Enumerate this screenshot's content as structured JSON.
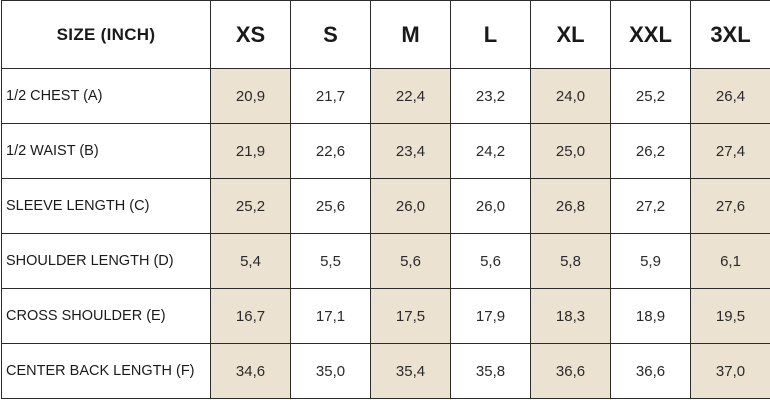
{
  "header_label": "SIZE (INCH)",
  "sizes": [
    "XS",
    "S",
    "M",
    "L",
    "XL",
    "XXL",
    "3XL"
  ],
  "shading_color": "#ece2d1",
  "shaded_columns": [
    0,
    2,
    4,
    6
  ],
  "rows": [
    {
      "label": "1/2 CHEST (A)",
      "values": [
        "20,9",
        "21,7",
        "22,4",
        "23,2",
        "24,0",
        "25,2",
        "26,4"
      ]
    },
    {
      "label": "1/2 WAIST (B)",
      "values": [
        "21,9",
        "22,6",
        "23,4",
        "24,2",
        "25,0",
        "26,2",
        "27,4"
      ]
    },
    {
      "label": "SLEEVE LENGTH (C)",
      "values": [
        "25,2",
        "25,6",
        "26,0",
        "26,0",
        "26,8",
        "27,2",
        "27,6"
      ]
    },
    {
      "label": "SHOULDER LENGTH (D)",
      "values": [
        "5,4",
        "5,5",
        "5,6",
        "5,6",
        "5,8",
        "5,9",
        "6,1"
      ]
    },
    {
      "label": "CROSS SHOULDER (E)",
      "values": [
        "16,7",
        "17,1",
        "17,5",
        "17,9",
        "18,3",
        "18,9",
        "19,5"
      ]
    },
    {
      "label": "CENTER BACK LENGTH (F)",
      "values": [
        "34,6",
        "35,0",
        "35,4",
        "35,8",
        "36,6",
        "36,6",
        "37,0"
      ]
    }
  ]
}
